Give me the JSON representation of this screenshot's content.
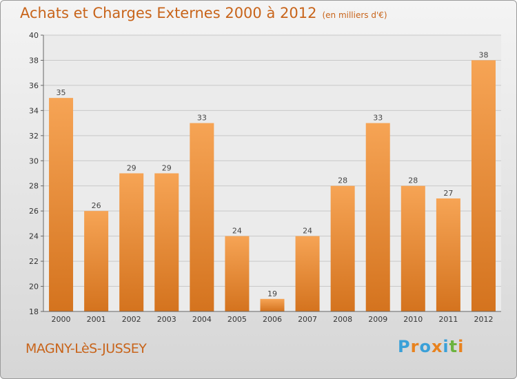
{
  "title": "Achats et Charges Externes 2000 à 2012",
  "subtitle": "(en milliers d'€)",
  "city": "MAGNY-LèS-JUSSEY",
  "brand": {
    "letters": [
      "P",
      "r",
      "o",
      "x",
      "i",
      "t",
      "i"
    ],
    "colors": [
      "#3aa0d8",
      "#e8821e",
      "#3aa0d8",
      "#e8821e",
      "#3aa0d8",
      "#6cb33f",
      "#e8821e"
    ]
  },
  "colors": {
    "bar_top": "#f6a455",
    "bar_bottom": "#d4731e",
    "grid": "#c8c8c8",
    "axis": "#666666"
  },
  "chart_data": {
    "type": "bar",
    "categories": [
      "2000",
      "2001",
      "2002",
      "2003",
      "2004",
      "2005",
      "2006",
      "2007",
      "2008",
      "2009",
      "2010",
      "2011",
      "2012"
    ],
    "values": [
      35,
      26,
      29,
      29,
      33,
      24,
      19,
      24,
      28,
      33,
      28,
      27,
      38
    ],
    "ylim": [
      18,
      40
    ],
    "yticks": [
      18,
      20,
      22,
      24,
      26,
      28,
      30,
      32,
      34,
      36,
      38,
      40
    ],
    "grid": true
  }
}
